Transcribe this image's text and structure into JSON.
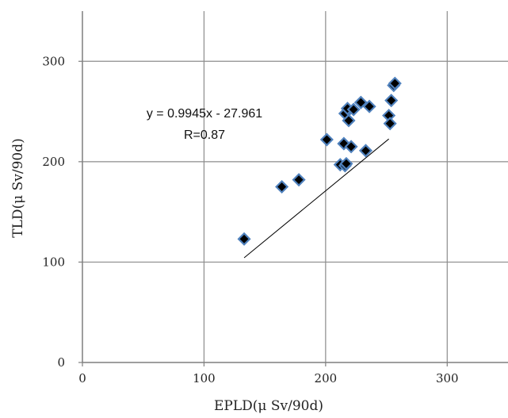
{
  "chart_data": {
    "type": "scatter",
    "title": "",
    "xlabel": "EPLD(μ Sv/90d)",
    "ylabel": "TLD(μ Sv/90d)",
    "xlim": [
      0,
      350
    ],
    "ylim": [
      0,
      350
    ],
    "xticks": [
      "0",
      "100",
      "200",
      "300"
    ],
    "yticks": [
      "0",
      "100",
      "200",
      "300"
    ],
    "grid": true,
    "legend": "none",
    "marker_color": "#000000",
    "marker_outline_color": "#4f81bd",
    "trendline_color": "#000000",
    "annotations": {
      "equation": "y = 0.9945x - 27.961",
      "r_value": "R=0.87"
    },
    "trendline": {
      "slope": 0.9945,
      "intercept": -27.961,
      "x_range": [
        133,
        252
      ]
    },
    "points": [
      {
        "x": 133,
        "y": 123
      },
      {
        "x": 164,
        "y": 175
      },
      {
        "x": 178,
        "y": 182
      },
      {
        "x": 201,
        "y": 222
      },
      {
        "x": 212,
        "y": 197
      },
      {
        "x": 215,
        "y": 218
      },
      {
        "x": 216,
        "y": 196
      },
      {
        "x": 216,
        "y": 248
      },
      {
        "x": 217,
        "y": 198
      },
      {
        "x": 218,
        "y": 253
      },
      {
        "x": 219,
        "y": 241
      },
      {
        "x": 221,
        "y": 215
      },
      {
        "x": 223,
        "y": 252
      },
      {
        "x": 229,
        "y": 259
      },
      {
        "x": 233,
        "y": 211
      },
      {
        "x": 236,
        "y": 255
      },
      {
        "x": 252,
        "y": 246
      },
      {
        "x": 253,
        "y": 238
      },
      {
        "x": 254,
        "y": 261
      },
      {
        "x": 256,
        "y": 276
      },
      {
        "x": 257,
        "y": 278
      }
    ]
  }
}
